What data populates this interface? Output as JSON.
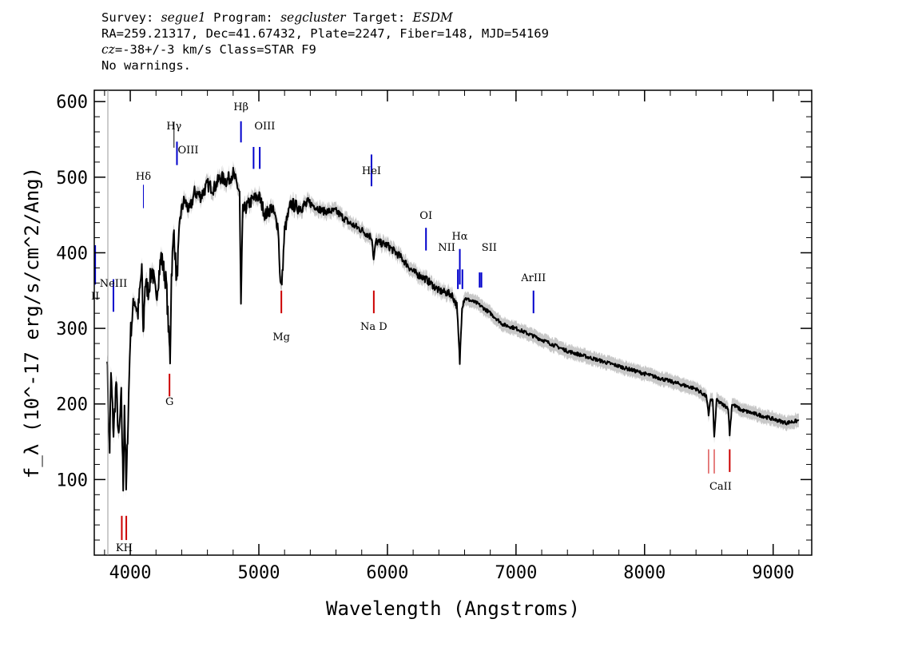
{
  "header": {
    "survey_label": "Survey:",
    "survey": "segue1",
    "program_label": "Program:",
    "program": "segcluster",
    "target_label": "Target:",
    "target": "ESDM",
    "line2": "RA=259.21317, Dec=41.67432, Plate=2247, Fiber=148, MJD=54169",
    "cz_label": "cz",
    "line3_rest": "=-38+/-3 km/s Class=STAR F9",
    "line4": "No warnings."
  },
  "chart_data": {
    "type": "line",
    "xlabel": "Wavelength (Angstroms)",
    "ylabel": "f_λ (10^-17 erg/s/cm^2/Ang)",
    "xlim": [
      3720,
      9300
    ],
    "ylim": [
      0,
      615
    ],
    "x_ticks": [
      4000,
      5000,
      6000,
      7000,
      8000,
      9000
    ],
    "y_ticks": [
      100,
      200,
      300,
      400,
      500,
      600
    ],
    "colors": {
      "flux": "#000000",
      "error": "#b0b0b0",
      "emission": "#0000cc",
      "absorption": "#cc0000"
    },
    "series": [
      {
        "x": [
          3820,
          3830,
          3840,
          3850,
          3870,
          3890,
          3910,
          3930,
          3945,
          3955,
          3968,
          3980,
          4000,
          4030,
          4060,
          4090,
          4101,
          4115,
          4140,
          4170,
          4200,
          4240,
          4280,
          4300,
          4310,
          4320,
          4340,
          4360,
          4390,
          4420,
          4460,
          4500,
          4550,
          4600,
          4650,
          4700,
          4750,
          4800,
          4830,
          4850,
          4861,
          4875,
          4900,
          4950,
          5000,
          5050,
          5100,
          5150,
          5167,
          5175,
          5183,
          5200,
          5250,
          5300,
          5400,
          5500,
          5600,
          5700,
          5800,
          5880,
          5893,
          5910,
          6000,
          6100,
          6200,
          6300,
          6400,
          6500,
          6540,
          6563,
          6580,
          6600,
          6700,
          6800,
          6900,
          7000,
          7200,
          7400,
          7600,
          7800,
          8000,
          8200,
          8400,
          8480,
          8498,
          8510,
          8530,
          8542,
          8560,
          8600,
          8650,
          8662,
          8680,
          8750,
          8900,
          9000,
          9100,
          9200
        ],
        "y": [
          270,
          180,
          140,
          240,
          160,
          230,
          150,
          210,
          90,
          200,
          85,
          160,
          290,
          340,
          320,
          380,
          290,
          360,
          350,
          380,
          340,
          395,
          360,
          290,
          260,
          370,
          430,
          360,
          450,
          470,
          455,
          480,
          475,
          490,
          485,
          500,
          495,
          505,
          490,
          480,
          330,
          455,
          460,
          470,
          475,
          450,
          460,
          435,
          360,
          355,
          370,
          430,
          465,
          460,
          465,
          455,
          455,
          440,
          430,
          420,
          390,
          415,
          410,
          395,
          375,
          365,
          350,
          345,
          330,
          255,
          330,
          340,
          333,
          320,
          305,
          300,
          285,
          270,
          260,
          250,
          240,
          230,
          220,
          210,
          185,
          205,
          205,
          155,
          205,
          200,
          195,
          160,
          200,
          192,
          185,
          180,
          175,
          178
        ]
      }
    ],
    "emission_lines": [
      {
        "label": "II",
        "x": 3727
      },
      {
        "label": "NeIII",
        "x": 3869
      },
      {
        "label": "Hδ",
        "x": 4102
      },
      {
        "label": "Hγ",
        "x": 4340
      },
      {
        "label": "OIII",
        "x": 4363
      },
      {
        "label": "Hβ",
        "x": 4861
      },
      {
        "label": "OIII",
        "x": 4959
      },
      {
        "label": "OIII",
        "x": 5007
      },
      {
        "label": "HeI",
        "x": 5876
      },
      {
        "label": "OI",
        "x": 6300
      },
      {
        "label": "NII",
        "x": 6548
      },
      {
        "label": "Hα",
        "x": 6563
      },
      {
        "label": "NII",
        "x": 6583
      },
      {
        "label": "SII",
        "x": 6717
      },
      {
        "label": "SII",
        "x": 6731
      },
      {
        "label": "ArIII",
        "x": 7136
      }
    ],
    "absorption_lines": [
      {
        "label": "K",
        "x": 3934
      },
      {
        "label": "H",
        "x": 3969
      },
      {
        "label": "G",
        "x": 4305
      },
      {
        "label": "Mg",
        "x": 5175
      },
      {
        "label": "Na  D",
        "x": 5894
      },
      {
        "label": "CaII",
        "x": 8498
      },
      {
        "label": "CaII",
        "x": 8542
      },
      {
        "label": "CaII",
        "x": 8662
      }
    ]
  }
}
